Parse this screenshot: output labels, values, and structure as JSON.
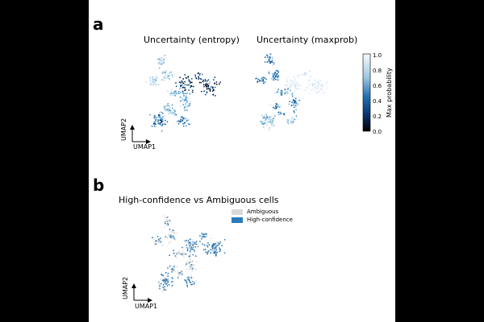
{
  "panel_a": {
    "letter": "a",
    "left_title": "Uncertainty (entropy)",
    "right_title": "Uncertainty (maxprob)",
    "umap_x": "UMAP1",
    "umap_y": "UMAP2",
    "colorbar": {
      "label": "Max probability",
      "ticks": [
        "0.0",
        "0.2",
        "0.4",
        "0.6",
        "0.8",
        "1.0"
      ],
      "low_color": "#08306b",
      "high_color": "#f7fbff"
    }
  },
  "panel_b": {
    "letter": "b",
    "title": "High-confidence vs Ambiguous cells",
    "umap_x": "UMAP1",
    "umap_y": "UMAP2",
    "legend": [
      {
        "label": "Ambiguous",
        "color": "#d9d9d9"
      },
      {
        "label": "High-confidence",
        "color": "#2b7bba"
      }
    ]
  }
}
